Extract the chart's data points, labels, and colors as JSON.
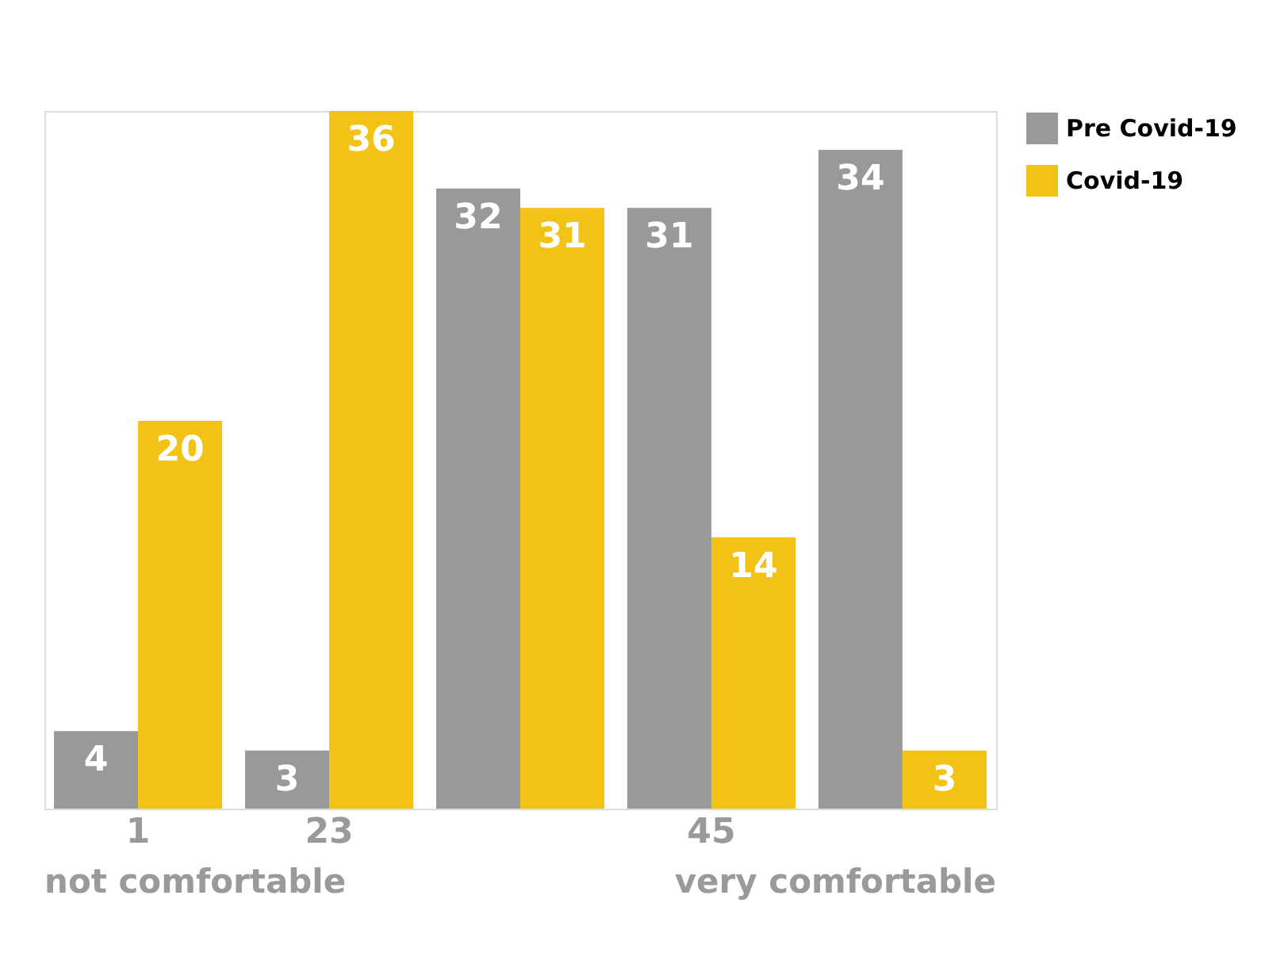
{
  "chart_data": {
    "type": "bar",
    "categories": [
      "1",
      "23",
      null,
      "45",
      null
    ],
    "series": [
      {
        "name": "Pre Covid-19",
        "color": "#999999",
        "values": [
          4,
          3,
          32,
          31,
          34
        ]
      },
      {
        "name": "Covid-19",
        "color": "#f2c314",
        "values": [
          20,
          36,
          31,
          14,
          3
        ]
      }
    ],
    "data_labels": true,
    "legend": "top right",
    "grid": false,
    "annotations": [
      "not comfortable",
      "very comfortable"
    ]
  }
}
